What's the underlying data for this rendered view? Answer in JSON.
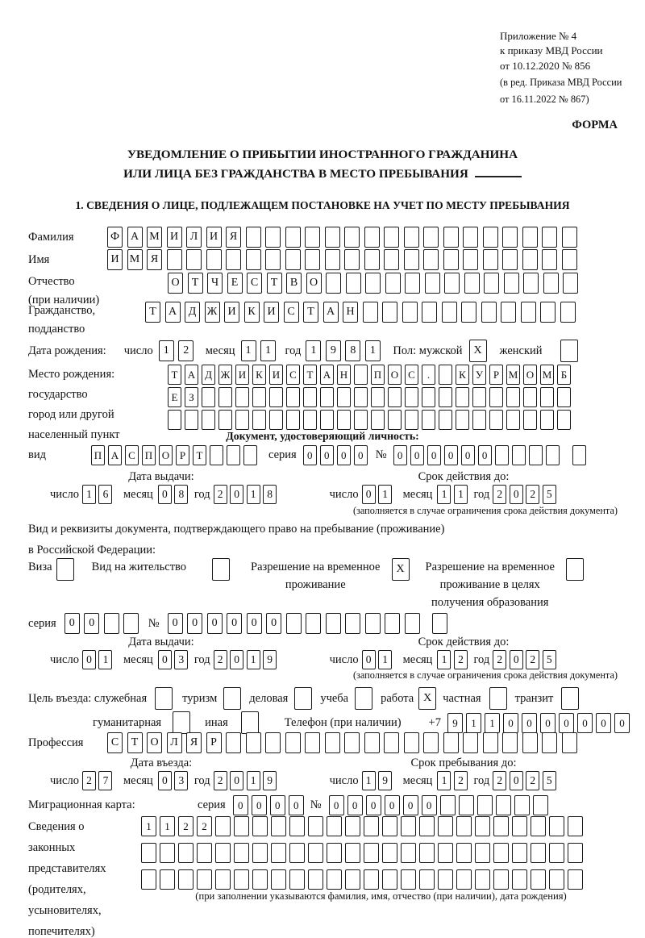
{
  "page": {
    "bg": "#ffffff",
    "text_color": "#111111",
    "box_border_color": "#1a1a1a"
  },
  "annex": {
    "lines": [
      "Приложение № 4",
      "к приказу МВД России",
      "от 10.12.2020 № 856"
    ],
    "note_lines": [
      "(в ред. Приказа МВД России",
      "от 16.11.2022 № 867)"
    ],
    "forma": "ФОРМА"
  },
  "title": {
    "line1": "УВЕДОМЛЕНИЕ О ПРИБЫТИИ ИНОСТРАННОГО ГРАЖДАНИНА",
    "line2": "ИЛИ ЛИЦА БЕЗ ГРАЖДАНСТВА В МЕСТО ПРЕБЫВАНИЯ"
  },
  "section1_heading": "1. СВЕДЕНИЯ О ЛИЦЕ, ПОДЛЕЖАЩЕМ ПОСТАНОВКЕ НА УЧЕТ ПО МЕСТУ ПРЕБЫВАНИЯ",
  "surname": {
    "label": "Фамилия",
    "cells": {
      "v": "ФАМИЛИЯ",
      "n": 24
    }
  },
  "firstname": {
    "label": "Имя",
    "cells": {
      "v": "ИМЯ",
      "n": 24
    }
  },
  "patronymic": {
    "label_line1": "Отчество",
    "label_line2": "(при наличии)",
    "cells": {
      "v": "ОТЧЕСТВО",
      "n": 21
    }
  },
  "citizenship": {
    "label_line1": "Гражданство,",
    "label_line2": "подданство",
    "cells": {
      "v": "ТАДЖИКИСТАН",
      "n": 22
    }
  },
  "birth_date": {
    "label": "Дата рождения:",
    "day_label": "число",
    "day": {
      "v": "12",
      "n": 2
    },
    "month_label": "месяц",
    "month": {
      "v": "11",
      "n": 2
    },
    "year_label": "год",
    "year": {
      "v": "1981",
      "n": 4
    }
  },
  "sex": {
    "label": "Пол: мужской",
    "male_box": {
      "v": "X",
      "n": 1
    },
    "female_label": "женский",
    "female_box": {
      "v": "",
      "n": 1
    }
  },
  "birth_place": {
    "label_lines": [
      "Место рождения:",
      "государство",
      "город или другой",
      "населенный пункт"
    ],
    "row1": {
      "v": "ТАДЖИКИСТАН ПОС. КУРМОМБ",
      "n": 24
    },
    "row2": {
      "v": "ЕЗ",
      "n": 24
    },
    "row3": {
      "v": "",
      "n": 24
    }
  },
  "identity_doc": {
    "heading": "Документ, удостоверяющий личность:",
    "type_label": "вид",
    "type_cells": {
      "v": "ПАСПОРТ",
      "n": 10
    },
    "series_label": "серия",
    "series_cells": {
      "v": "0000",
      "n": 4
    },
    "number_label": "№",
    "number_cells": {
      "v": "000000",
      "n": 10
    },
    "number_extra": {
      "v": "",
      "n": 1
    },
    "issue_heading": "Дата выдачи:",
    "valid_heading": "Срок действия до:",
    "issue": {
      "day_label": "число",
      "day": {
        "v": "16",
        "n": 2
      },
      "month_label": "месяц",
      "month": {
        "v": "08",
        "n": 2
      },
      "year_label": "год",
      "year": {
        "v": "2018",
        "n": 4
      }
    },
    "valid": {
      "day_label": "число",
      "day": {
        "v": "01",
        "n": 2
      },
      "month_label": "месяц",
      "month": {
        "v": "11",
        "n": 2
      },
      "year_label": "год",
      "year": {
        "v": "2025",
        "n": 4
      }
    },
    "note": "(заполняется в случае ограничения срока действия документа)"
  },
  "residence_doc": {
    "intro_line1": "Вид и реквизиты документа, подтверждающего право на пребывание (проживание)",
    "intro_line2": "в Российской Федерации:",
    "options": [
      {
        "label1": "Виза",
        "label2": "",
        "label3": "",
        "box": {
          "v": "",
          "n": 1
        }
      },
      {
        "label1": "Вид на жительство",
        "label2": "",
        "label3": "",
        "box": {
          "v": "",
          "n": 1
        }
      },
      {
        "label1": "Разрешение на временное",
        "label2": "проживание",
        "label3": "",
        "box": {
          "v": "X",
          "n": 1
        }
      },
      {
        "label1": "Разрешение на временное",
        "label2": "проживание в целях",
        "label3": "получения образования",
        "box": {
          "v": "",
          "n": 1
        }
      }
    ],
    "series_label": "серия",
    "series_cells": {
      "v": "00",
      "n": 4
    },
    "number_label": "№",
    "number_cells": {
      "v": "000000",
      "n": 13
    },
    "number_extra": {
      "v": "",
      "n": 1
    },
    "issue_heading": "Дата выдачи:",
    "valid_heading": "Срок действия до:",
    "issue": {
      "day_label": "число",
      "day": {
        "v": "01",
        "n": 2
      },
      "month_label": "месяц",
      "month": {
        "v": "03",
        "n": 2
      },
      "year_label": "год",
      "year": {
        "v": "2019",
        "n": 4
      }
    },
    "valid": {
      "day_label": "число",
      "day": {
        "v": "01",
        "n": 2
      },
      "month_label": "месяц",
      "month": {
        "v": "12",
        "n": 2
      },
      "year_label": "год",
      "year": {
        "v": "2025",
        "n": 4
      }
    },
    "note": "(заполняется в случае ограничения срока действия документа)"
  },
  "visit_purpose": {
    "label": "Цель въезда: служебная",
    "options_row1": [
      {
        "label": "туризм",
        "box": {
          "v": "",
          "n": 1
        }
      },
      {
        "label": "деловая",
        "box": {
          "v": "",
          "n": 1
        }
      },
      {
        "label": "учеба",
        "box": {
          "v": "",
          "n": 1
        }
      },
      {
        "label": "работа",
        "box": {
          "v": "X",
          "n": 1
        }
      },
      {
        "label": "частная",
        "box": {
          "v": "",
          "n": 1
        }
      },
      {
        "label": "транзит",
        "box": {
          "v": "",
          "n": 1
        }
      }
    ],
    "first_box": {
      "v": "",
      "n": 1
    },
    "row2_label1": "гуманитарная",
    "row2_box1": {
      "v": "",
      "n": 1
    },
    "row2_label2": "иная",
    "row2_box2": {
      "v": "",
      "n": 1
    },
    "phone_label": "Телефон (при наличии)",
    "phone_prefix": "+7",
    "phone_cells": {
      "v": "9110000000",
      "n": 10
    }
  },
  "profession": {
    "label": "Профессия",
    "cells": {
      "v": "СТОЛЯР",
      "n": 24
    }
  },
  "entry": {
    "entry_heading": "Дата въезда:",
    "stay_heading": "Срок пребывания до:",
    "entry_date": {
      "day_label": "число",
      "day": {
        "v": "27",
        "n": 2
      },
      "month_label": "месяц",
      "month": {
        "v": "03",
        "n": 2
      },
      "year_label": "год",
      "year": {
        "v": "2019",
        "n": 4
      }
    },
    "stay_date": {
      "day_label": "число",
      "day": {
        "v": "19",
        "n": 2
      },
      "month_label": "месяц",
      "month": {
        "v": "12",
        "n": 2
      },
      "year_label": "год",
      "year": {
        "v": "2025",
        "n": 4
      }
    }
  },
  "migration_card": {
    "label": "Миграционная карта:",
    "series_label": "серия",
    "series_cells": {
      "v": "0000",
      "n": 4
    },
    "number_label": "№",
    "number_cells": {
      "v": "000000",
      "n": 12
    }
  },
  "representatives": {
    "label_lines": [
      "Сведения о",
      "законных",
      "представителях",
      "(родителях,",
      "усыновителях,",
      "попечителях)"
    ],
    "row1": {
      "v": "1122",
      "n": 24
    },
    "row2": {
      "v": "",
      "n": 24
    },
    "row3": {
      "v": "",
      "n": 24
    },
    "note": "(при заполнении указываются фамилия, имя, отчество (при наличии), дата рождения)"
  }
}
